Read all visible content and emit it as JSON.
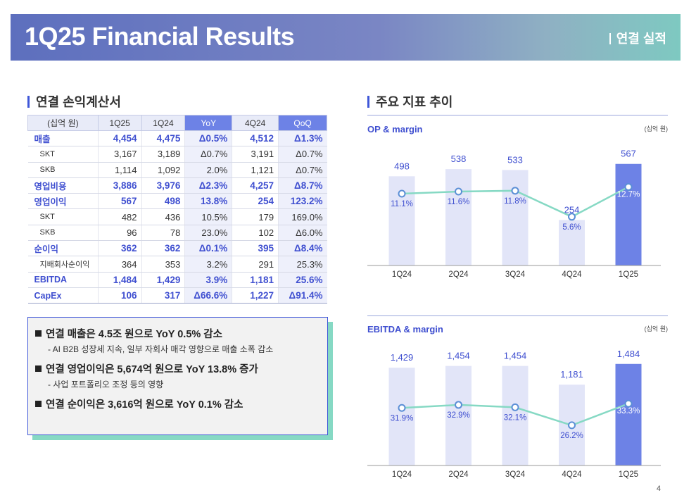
{
  "header": {
    "title": "1Q25 Financial Results",
    "subtitle": "연결 실적"
  },
  "income_statement": {
    "title": "연결 손익계산서",
    "headers": [
      "(십억 원)",
      "1Q25",
      "1Q24",
      "YoY",
      "4Q24",
      "QoQ"
    ],
    "rows": [
      {
        "type": "main",
        "cells": [
          "매출",
          "4,454",
          "4,475",
          "Δ0.5%",
          "4,512",
          "Δ1.3%"
        ]
      },
      {
        "type": "sub",
        "cells": [
          "SKT",
          "3,167",
          "3,189",
          "Δ0.7%",
          "3,191",
          "Δ0.7%"
        ]
      },
      {
        "type": "sub",
        "cells": [
          "SKB",
          "1,114",
          "1,092",
          "2.0%",
          "1,121",
          "Δ0.7%"
        ]
      },
      {
        "type": "main",
        "cells": [
          "영업비용",
          "3,886",
          "3,976",
          "Δ2.3%",
          "4,257",
          "Δ8.7%"
        ]
      },
      {
        "type": "main",
        "cells": [
          "영업이익",
          "567",
          "498",
          "13.8%",
          "254",
          "123.2%"
        ]
      },
      {
        "type": "sub",
        "cells": [
          "SKT",
          "482",
          "436",
          "10.5%",
          "179",
          "169.0%"
        ]
      },
      {
        "type": "sub",
        "cells": [
          "SKB",
          "96",
          "78",
          "23.0%",
          "102",
          "Δ6.0%"
        ]
      },
      {
        "type": "main",
        "cells": [
          "순이익",
          "362",
          "362",
          "Δ0.1%",
          "395",
          "Δ8.4%"
        ]
      },
      {
        "type": "sub",
        "cells": [
          "지배회사순이익",
          "364",
          "353",
          "3.2%",
          "291",
          "25.3%"
        ]
      },
      {
        "type": "main",
        "cells": [
          "EBITDA",
          "1,484",
          "1,429",
          "3.9%",
          "1,181",
          "25.6%"
        ]
      },
      {
        "type": "main",
        "cells": [
          "CapEx",
          "106",
          "317",
          "Δ66.6%",
          "1,227",
          "Δ91.4%"
        ]
      }
    ]
  },
  "summary": {
    "items": [
      {
        "headline": "연결 매출은 4.5조 원으로 YoY 0.5% 감소",
        "note": "- AI B2B 성장세 지속, 일부 자회사 매각 영향으로 매출 소폭 감소"
      },
      {
        "headline": "연결 영업이익은 5,674억 원으로 YoY 13.8% 증가",
        "note": "- 사업 포트폴리오 조정 등의 영향"
      },
      {
        "headline": "연결 순이익은 3,616억 원으로 YoY 0.1% 감소",
        "note": ""
      }
    ]
  },
  "charts_section_title": "주요 지표 추이",
  "colors": {
    "accent": "#3f4fd0",
    "bar": "#e2e5f8",
    "bar_highlight": "#6d82e6",
    "line": "#86d9c4",
    "point": "#5b8fd6"
  },
  "chart_data": [
    {
      "type": "bar",
      "title": "OP & margin",
      "unit": "(십억 원)",
      "categories": [
        "1Q24",
        "2Q24",
        "3Q24",
        "4Q24",
        "1Q25"
      ],
      "series": [
        {
          "name": "OP",
          "values": [
            498,
            538,
            533,
            254,
            567
          ],
          "labels": [
            "498",
            "538",
            "533",
            "254",
            "567"
          ]
        },
        {
          "name": "margin",
          "type": "line",
          "values": [
            11.1,
            11.6,
            11.8,
            5.6,
            12.7
          ],
          "labels": [
            "11.1%",
            "11.6%",
            "11.8%",
            "5.6%",
            "12.7%"
          ]
        }
      ],
      "ylim": [
        0,
        680
      ],
      "margin_lim": [
        -6,
        23
      ]
    },
    {
      "type": "bar",
      "title": "EBITDA & margin",
      "unit": "(십억 원)",
      "categories": [
        "1Q24",
        "2Q24",
        "3Q24",
        "4Q24",
        "1Q25"
      ],
      "series": [
        {
          "name": "EBITDA",
          "values": [
            1429,
            1454,
            1454,
            1181,
            1484
          ],
          "labels": [
            "1,429",
            "1,454",
            "1,454",
            "1,181",
            "1,484"
          ]
        },
        {
          "name": "margin",
          "type": "line",
          "values": [
            31.9,
            32.9,
            32.1,
            26.2,
            33.3
          ],
          "labels": [
            "31.9%",
            "32.9%",
            "32.1%",
            "26.2%",
            "33.3%"
          ]
        }
      ],
      "ylim": [
        0,
        1780
      ],
      "margin_lim": [
        13,
        53
      ]
    }
  ],
  "page_number": "4"
}
